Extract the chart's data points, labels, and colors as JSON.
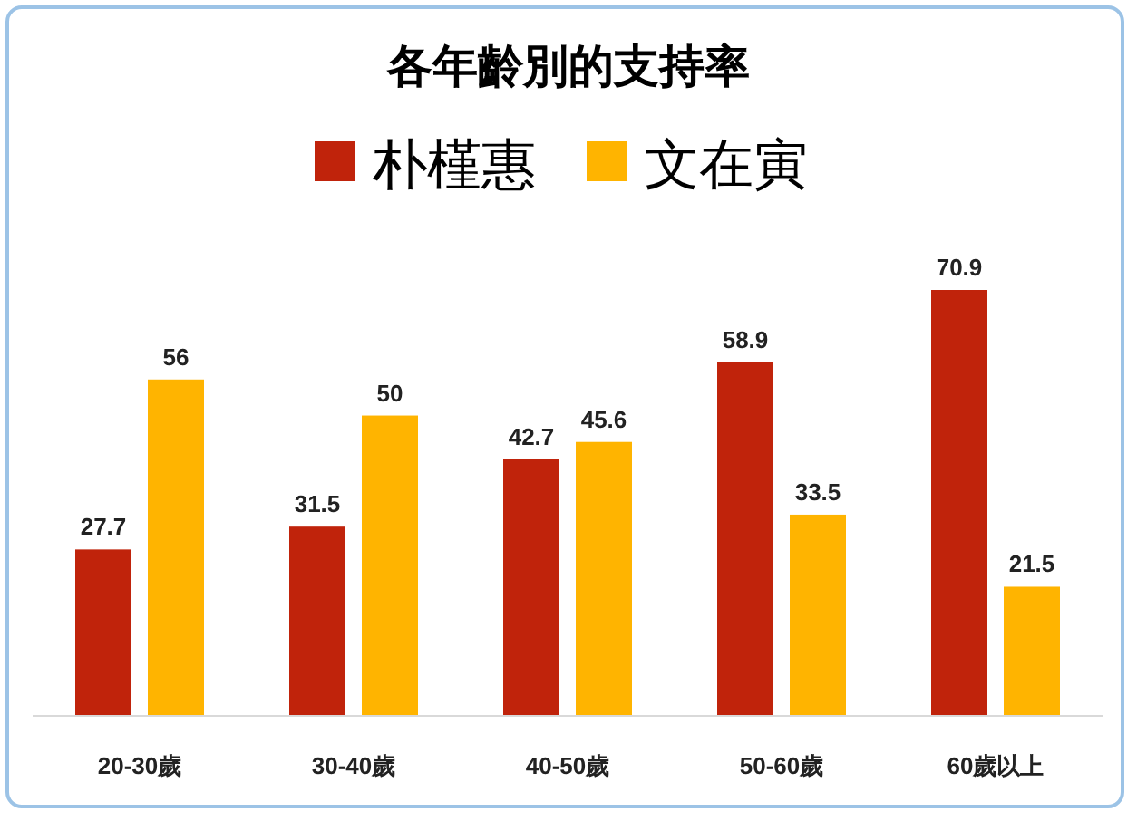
{
  "chart_data": {
    "type": "bar",
    "title": "各年齡別的支持率",
    "categories": [
      "20-30歲",
      "30-40歲",
      "40-50歲",
      "50-60歲",
      "60歲以上"
    ],
    "series": [
      {
        "name": "朴槿惠",
        "color": "#c0230b",
        "values": [
          27.7,
          31.5,
          42.7,
          58.9,
          70.9
        ]
      },
      {
        "name": "文在寅",
        "color": "#ffb400",
        "values": [
          56,
          50,
          45.6,
          33.5,
          21.5
        ]
      }
    ],
    "data_labels": true,
    "legend": "top"
  }
}
